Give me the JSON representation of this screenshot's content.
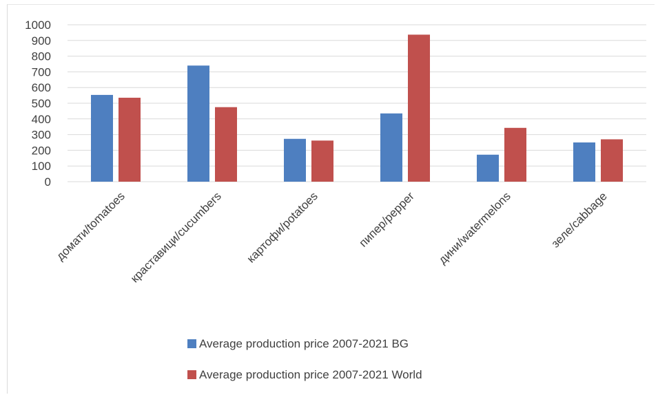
{
  "chart_data": {
    "type": "bar",
    "title": "",
    "xlabel": "",
    "ylabel": "",
    "categories": [
      "домати/tomatoes",
      "краставици/cucumbers",
      "картофи/potatoes",
      "пипер/pepper",
      "дини/watermelons",
      "зеле/cabbage"
    ],
    "series": [
      {
        "name": "Average production price 2007-2021 BG",
        "color": "#4e7fc0",
        "values": [
          553,
          740,
          273,
          435,
          172,
          250
        ]
      },
      {
        "name": "Average production price 2007-2021 World",
        "color": "#c0504d",
        "values": [
          535,
          475,
          262,
          937,
          343,
          270
        ]
      }
    ],
    "ylim": [
      0,
      1000
    ],
    "yticks": [
      0,
      100,
      200,
      300,
      400,
      500,
      600,
      700,
      800,
      900,
      1000
    ],
    "grid": true,
    "legend": "bottom"
  }
}
